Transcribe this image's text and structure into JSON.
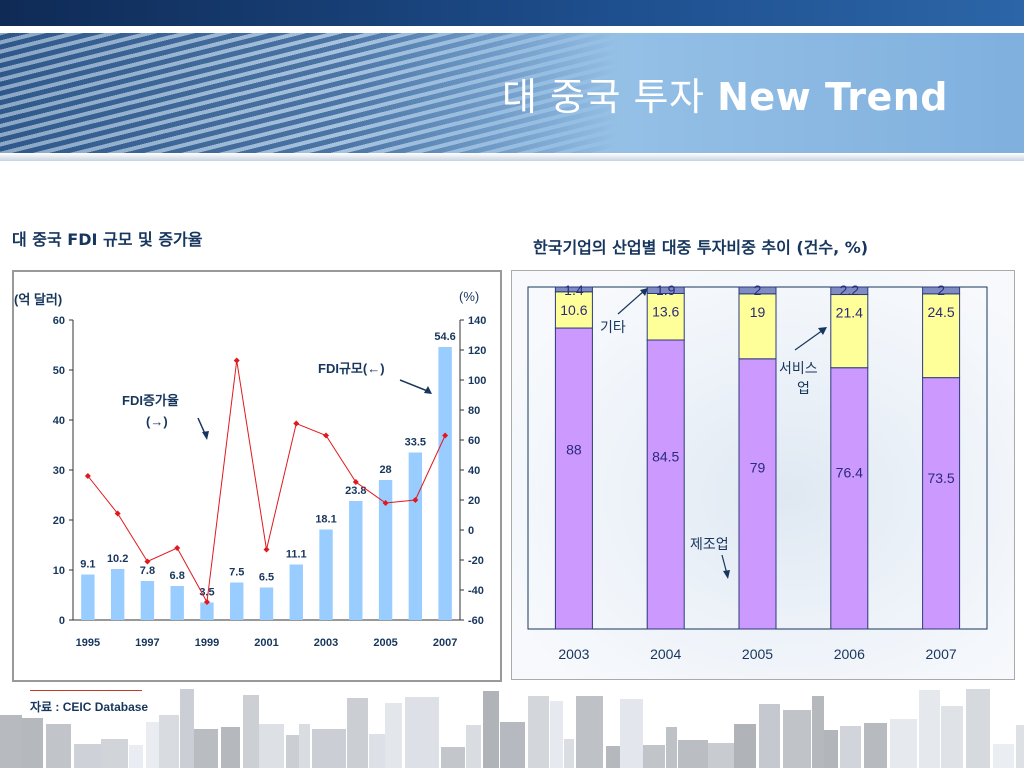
{
  "slide": {
    "title_korean": "대 중국 투자",
    "title_english": "New Trend"
  },
  "source": "자료 : CEIC Database",
  "colors": {
    "fdi_bar": "#99ccff",
    "growth_line": "#e0191f",
    "manufacturing": "#cc99ff",
    "service": "#ffff99",
    "other": "#7f8cc4",
    "title_text": "#17365d"
  },
  "chart_data": [
    {
      "type": "bar",
      "title": "대 중국 FDI 규모 및 증가율",
      "ylabel_left": "(억 달러)",
      "ylabel_right": "(%)",
      "x": [
        1995,
        1996,
        1997,
        1998,
        1999,
        2000,
        2001,
        2002,
        2003,
        2004,
        2005,
        2006,
        2007
      ],
      "x_tick_labels": [
        "1995",
        "1997",
        "1999",
        "2001",
        "2003",
        "2005",
        "2007"
      ],
      "ylim_left": [
        0,
        60
      ],
      "yticks_left": [
        0,
        10,
        20,
        30,
        40,
        50,
        60
      ],
      "ylim_right": [
        -60,
        140
      ],
      "yticks_right": [
        -60,
        -40,
        -20,
        0,
        20,
        40,
        60,
        80,
        100,
        120,
        140
      ],
      "series": [
        {
          "name": "FDI규모(←)",
          "type": "bar",
          "axis": "left",
          "values": [
            9.1,
            10.2,
            7.8,
            6.8,
            3.5,
            7.5,
            6.5,
            11.1,
            18.1,
            23.8,
            28,
            33.5,
            54.6
          ]
        },
        {
          "name": "FDI증가율 (→)",
          "type": "line",
          "axis": "right",
          "values": [
            36,
            11,
            -21,
            -12,
            -48,
            113,
            -13,
            71,
            63,
            32,
            18,
            20,
            63
          ]
        }
      ],
      "annotations": [
        "FDI규모(←)",
        "FDI증가율",
        "(→)"
      ],
      "grid": false
    },
    {
      "type": "bar",
      "stacked": true,
      "title": "한국기업의 산업별 대중 투자비중 추이 (건수, %)",
      "categories": [
        "2003",
        "2004",
        "2005",
        "2006",
        "2007"
      ],
      "series": [
        {
          "name": "제조업",
          "values": [
            88,
            84.5,
            79,
            76.4,
            73.5
          ],
          "labels": [
            "88",
            "84.5",
            "79",
            "76.4",
            "73.5"
          ]
        },
        {
          "name": "서비스업",
          "values": [
            10.6,
            13.6,
            19,
            21.4,
            24.5
          ],
          "labels": [
            "10.6",
            "13.6",
            "19",
            "21.4",
            "24.5"
          ]
        },
        {
          "name": "기타",
          "values": [
            1.4,
            1.9,
            2,
            2.2,
            2
          ],
          "labels": [
            "1.4",
            "1.9",
            "2",
            "2.2",
            "2"
          ]
        }
      ],
      "annotations": [
        "기타",
        "서비스",
        "업",
        "제조업"
      ],
      "ylim": [
        0,
        100
      ],
      "grid": false
    }
  ]
}
